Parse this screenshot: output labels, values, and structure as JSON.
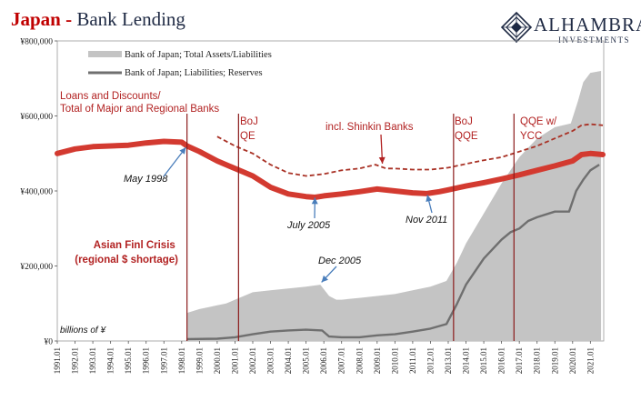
{
  "chart_data": {
    "type": "area",
    "title": "Japan",
    "title_separator": " - ",
    "subtitle": "Bank Lending",
    "units_note": "billions of ¥",
    "brand": {
      "name": "ALHAMBRA",
      "tagline": "INVESTMENTS",
      "logo_icon": "alhambra-diamond-logo"
    },
    "colors": {
      "title": "#c00000",
      "subtitle": "#1f2a44",
      "total_assets": "#c4c4c4",
      "reserves": "#6f6f6f",
      "loans": "#d33a30",
      "shinkin": "#a93226",
      "annotation_red": "#b22222",
      "annotation_arrow": "#4a7ebb",
      "vline": "#8b1a1a"
    },
    "y_axis": {
      "min": 0,
      "max": 800000,
      "ticks": [
        0,
        200000,
        400000,
        600000,
        800000
      ],
      "tick_labels": [
        "¥0",
        "¥200,000",
        "¥400,000",
        "¥600,000",
        "¥800,000"
      ]
    },
    "x_axis": {
      "min": 1991.0,
      "max": 2021.75,
      "ticks": [
        1991,
        1992,
        1993,
        1994,
        1995,
        1996,
        1997,
        1998,
        1999,
        2000,
        2001,
        2002,
        2003,
        2004,
        2005,
        2006,
        2007,
        2008,
        2009,
        2010,
        2011,
        2012,
        2013,
        2014,
        2015,
        2016,
        2017,
        2018,
        2019,
        2020,
        2021
      ],
      "tick_labels": [
        "1991.01",
        "1992.01",
        "1993.01",
        "1994.01",
        "1995.01",
        "1996.01",
        "1997.01",
        "1998.01",
        "1999.01",
        "2000.01",
        "2001.01",
        "2002.01",
        "2003.01",
        "2004.01",
        "2005.01",
        "2006.01",
        "2007.01",
        "2008.01",
        "2009.01",
        "2010.01",
        "2011.01",
        "2012.01",
        "2013.01",
        "2014.01",
        "2015.01",
        "2016.01",
        "2017.01",
        "2018.01",
        "2019.01",
        "2020.01",
        "2021.01"
      ]
    },
    "legend": {
      "placement": "top-left",
      "entries": [
        {
          "label": "Bank of Japan; Total Assets/Liabilities",
          "series": "total_assets"
        },
        {
          "label": "Bank of Japan; Liabilities; Reserves",
          "series": "reserves"
        }
      ]
    },
    "series": [
      {
        "key": "total_assets",
        "name": "Bank of Japan; Total Assets/Liabilities",
        "style": "area",
        "points": [
          [
            1998.3,
            75000
          ],
          [
            1999.0,
            85000
          ],
          [
            1999.5,
            90000
          ],
          [
            2000.0,
            95000
          ],
          [
            2000.5,
            100000
          ],
          [
            2001.0,
            110000
          ],
          [
            2001.5,
            120000
          ],
          [
            2002.0,
            130000
          ],
          [
            2003.0,
            135000
          ],
          [
            2004.0,
            140000
          ],
          [
            2005.0,
            145000
          ],
          [
            2005.8,
            150000
          ],
          [
            2006.3,
            120000
          ],
          [
            2006.7,
            110000
          ],
          [
            2007.0,
            110000
          ],
          [
            2008.0,
            115000
          ],
          [
            2009.0,
            120000
          ],
          [
            2010.0,
            125000
          ],
          [
            2011.0,
            135000
          ],
          [
            2012.0,
            145000
          ],
          [
            2012.9,
            160000
          ],
          [
            2013.5,
            210000
          ],
          [
            2014.0,
            260000
          ],
          [
            2015.0,
            340000
          ],
          [
            2016.0,
            420000
          ],
          [
            2017.0,
            490000
          ],
          [
            2018.0,
            540000
          ],
          [
            2019.0,
            570000
          ],
          [
            2019.9,
            580000
          ],
          [
            2020.3,
            640000
          ],
          [
            2020.6,
            690000
          ],
          [
            2021.0,
            715000
          ],
          [
            2021.6,
            720000
          ]
        ]
      },
      {
        "key": "reserves",
        "name": "Bank of Japan; Liabilities; Reserves",
        "style": "line",
        "points": [
          [
            1998.3,
            5000
          ],
          [
            2000.0,
            6000
          ],
          [
            2001.0,
            10000
          ],
          [
            2002.0,
            18000
          ],
          [
            2003.0,
            25000
          ],
          [
            2004.0,
            28000
          ],
          [
            2005.0,
            30000
          ],
          [
            2005.9,
            28000
          ],
          [
            2006.3,
            12000
          ],
          [
            2007.0,
            10000
          ],
          [
            2008.0,
            10000
          ],
          [
            2009.0,
            15000
          ],
          [
            2010.0,
            18000
          ],
          [
            2011.0,
            25000
          ],
          [
            2012.0,
            33000
          ],
          [
            2012.9,
            45000
          ],
          [
            2013.5,
            100000
          ],
          [
            2014.0,
            150000
          ],
          [
            2015.0,
            220000
          ],
          [
            2016.0,
            270000
          ],
          [
            2016.5,
            290000
          ],
          [
            2017.0,
            300000
          ],
          [
            2017.5,
            320000
          ],
          [
            2018.0,
            330000
          ],
          [
            2019.0,
            345000
          ],
          [
            2019.8,
            345000
          ],
          [
            2020.2,
            400000
          ],
          [
            2020.6,
            430000
          ],
          [
            2021.0,
            455000
          ],
          [
            2021.5,
            470000
          ]
        ]
      },
      {
        "key": "loans",
        "name": "Loans and Discounts/ Total of Major and Regional Banks",
        "style": "thick-line",
        "points": [
          [
            1991.0,
            500000
          ],
          [
            1992.0,
            512000
          ],
          [
            1993.0,
            518000
          ],
          [
            1994.0,
            520000
          ],
          [
            1995.0,
            522000
          ],
          [
            1996.0,
            528000
          ],
          [
            1997.0,
            532000
          ],
          [
            1998.0,
            530000
          ],
          [
            1998.3,
            520000
          ],
          [
            1999.0,
            505000
          ],
          [
            2000.0,
            480000
          ],
          [
            2001.0,
            460000
          ],
          [
            2002.0,
            440000
          ],
          [
            2003.0,
            410000
          ],
          [
            2004.0,
            392000
          ],
          [
            2005.0,
            385000
          ],
          [
            2005.5,
            383000
          ],
          [
            2006.0,
            387000
          ],
          [
            2007.0,
            392000
          ],
          [
            2008.0,
            398000
          ],
          [
            2009.0,
            405000
          ],
          [
            2010.0,
            400000
          ],
          [
            2011.0,
            395000
          ],
          [
            2011.8,
            393000
          ],
          [
            2012.5,
            398000
          ],
          [
            2013.0,
            403000
          ],
          [
            2014.0,
            413000
          ],
          [
            2015.0,
            422000
          ],
          [
            2016.0,
            432000
          ],
          [
            2017.0,
            443000
          ],
          [
            2018.0,
            455000
          ],
          [
            2019.0,
            467000
          ],
          [
            2020.0,
            480000
          ],
          [
            2020.5,
            497000
          ],
          [
            2021.0,
            500000
          ],
          [
            2021.7,
            497000
          ]
        ]
      },
      {
        "key": "shinkin",
        "name": "incl. Shinkin Banks",
        "style": "dashed-line",
        "points": [
          [
            2000.0,
            545000
          ],
          [
            2001.0,
            520000
          ],
          [
            2002.0,
            500000
          ],
          [
            2003.0,
            470000
          ],
          [
            2004.0,
            448000
          ],
          [
            2005.0,
            440000
          ],
          [
            2006.0,
            445000
          ],
          [
            2007.0,
            455000
          ],
          [
            2008.0,
            460000
          ],
          [
            2008.9,
            470000
          ],
          [
            2009.5,
            460000
          ],
          [
            2010.0,
            460000
          ],
          [
            2011.0,
            457000
          ],
          [
            2012.0,
            457000
          ],
          [
            2013.0,
            462000
          ],
          [
            2014.0,
            472000
          ],
          [
            2015.0,
            482000
          ],
          [
            2016.0,
            490000
          ],
          [
            2017.0,
            505000
          ],
          [
            2018.0,
            520000
          ],
          [
            2019.0,
            540000
          ],
          [
            2020.0,
            560000
          ],
          [
            2020.5,
            575000
          ],
          [
            2021.0,
            578000
          ],
          [
            2021.7,
            575000
          ]
        ]
      }
    ],
    "vertical_markers": [
      {
        "x": 1998.3,
        "label_lines": []
      },
      {
        "x": 2001.2,
        "label_lines": [
          "BoJ",
          "QE"
        ]
      },
      {
        "x": 2013.3,
        "label_lines": [
          "BoJ",
          "QQE"
        ]
      },
      {
        "x": 2016.7,
        "label_lines": [
          "QQE w/",
          "YCC"
        ]
      }
    ],
    "annotations": [
      {
        "key": "loans_label",
        "lines": [
          "Loans and Discounts/",
          "Total of Major and Regional Banks"
        ],
        "color": "red"
      },
      {
        "key": "shinkin_label",
        "lines": [
          "incl. Shinkin Banks"
        ],
        "color": "red",
        "arrow_to": [
          2009.3,
          468000
        ]
      },
      {
        "key": "asian_crisis",
        "lines": [
          "Asian Finl Crisis",
          "(regional $ shortage)"
        ],
        "color": "red"
      },
      {
        "key": "may_1998",
        "lines": [
          "May 1998"
        ],
        "color": "black",
        "arrow_to": [
          1998.3,
          520000
        ]
      },
      {
        "key": "july_2005",
        "lines": [
          "July 2005"
        ],
        "color": "black",
        "arrow_to": [
          2005.5,
          387000
        ]
      },
      {
        "key": "nov_2011",
        "lines": [
          "Nov 2011"
        ],
        "color": "black",
        "arrow_to": [
          2011.8,
          394000
        ]
      },
      {
        "key": "dec_2005",
        "lines": [
          "Dec 2005"
        ],
        "color": "black",
        "arrow_to": [
          2005.8,
          153000
        ]
      }
    ]
  }
}
